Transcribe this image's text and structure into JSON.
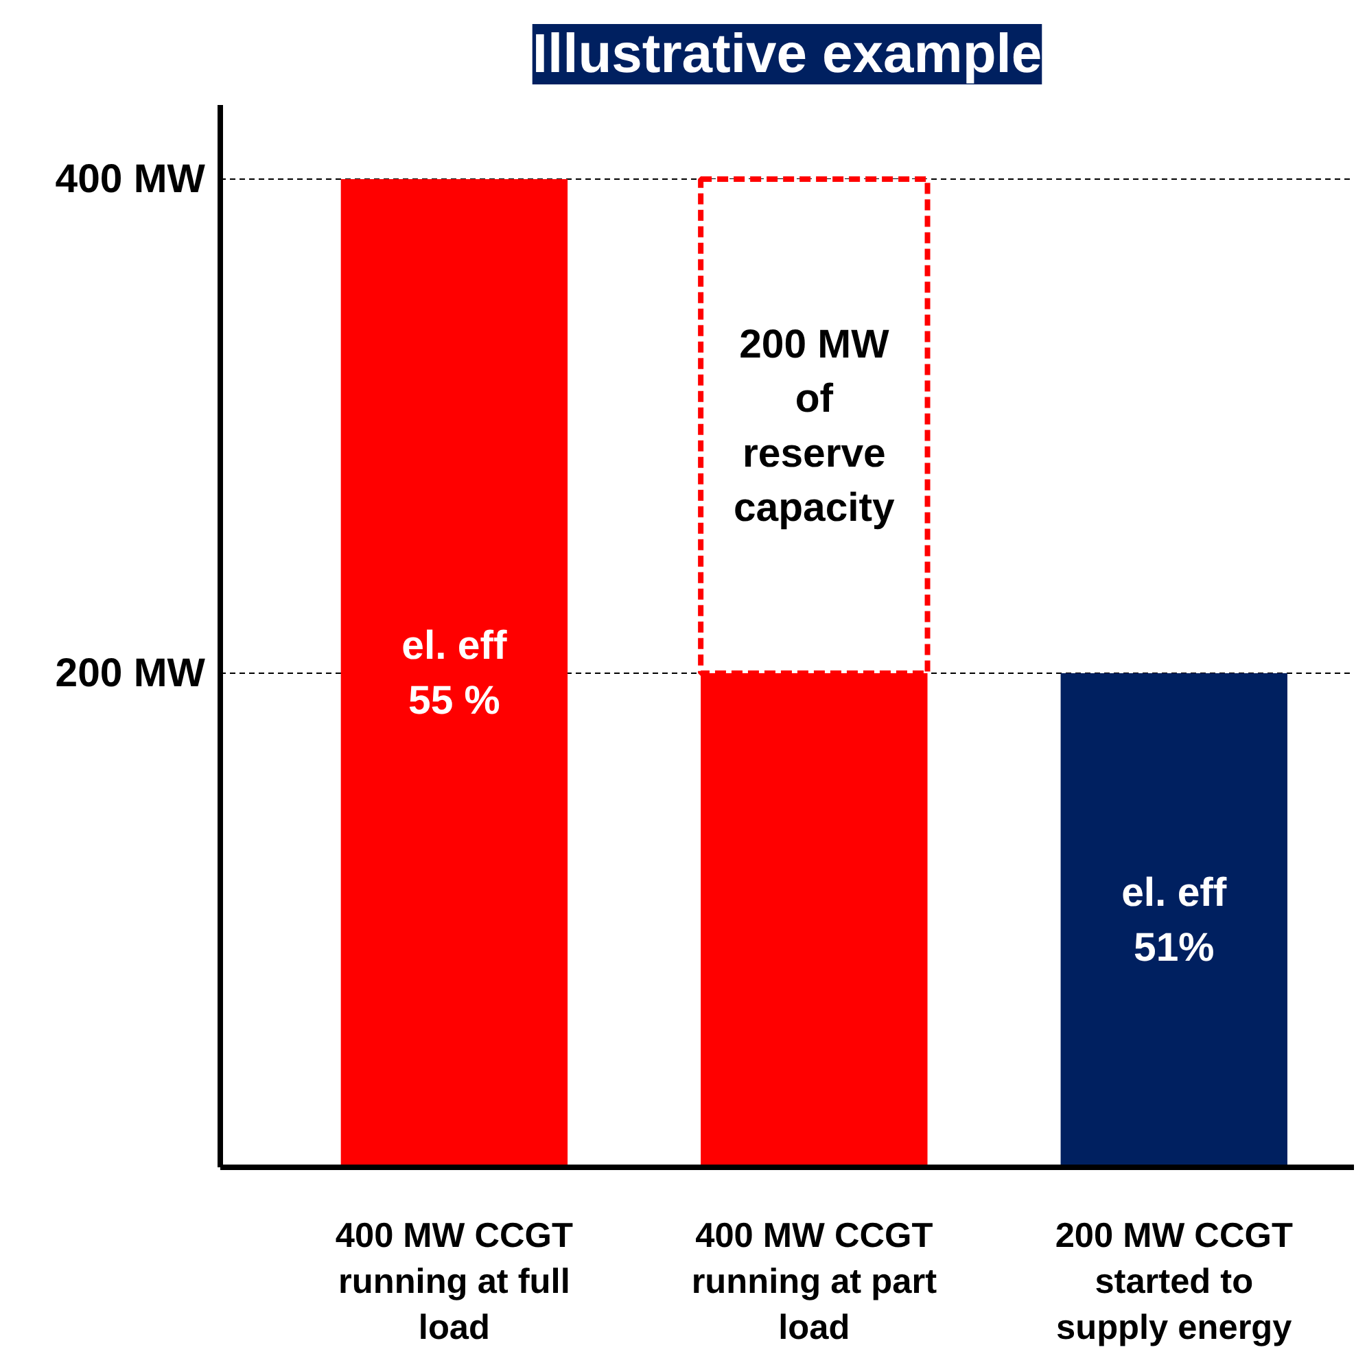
{
  "chart_data": {
    "type": "bar",
    "title": "Illustrative example",
    "stacked": true,
    "categories": [
      "400 MW CCGT running at full load",
      "400 MW CCGT running at part load",
      "200 MW CCGT started to supply energy"
    ],
    "series": [
      {
        "values": [
          400,
          200,
          200
        ],
        "colors": [
          "#ff0000",
          "#ff0000",
          "#002060"
        ]
      },
      {
        "values": [
          null,
          200,
          null
        ],
        "color": "#ff0000",
        "line_style": "dashed"
      }
    ],
    "ylim": [
      0,
      430
    ],
    "yticks": [
      {
        "value": 200,
        "label": "200 MW"
      },
      {
        "value": 400,
        "label": "400 MW"
      }
    ],
    "grid": "y",
    "annotations": [
      "el. eff\n55 %",
      "200 MW\nof\nreserve\ncapacity",
      "el. eff\n51%"
    ]
  }
}
